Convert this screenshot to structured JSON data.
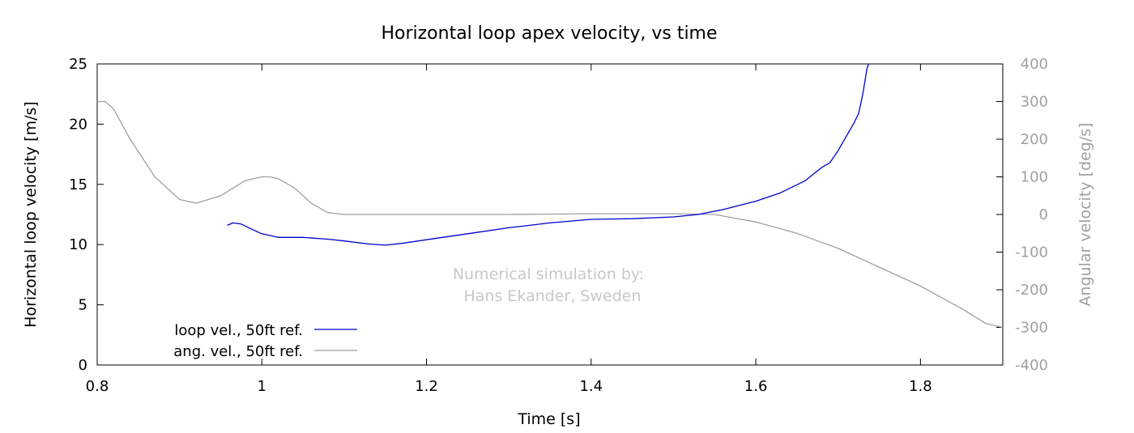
{
  "chart_data": {
    "type": "line",
    "title": "Horizontal loop apex velocity, vs time",
    "xlabel": "Time [s]",
    "ylabel": "Horizontal loop velocity [m/s]",
    "y2label": "Angular velocity [deg/s]",
    "xlim": [
      0.8,
      1.9
    ],
    "ylim": [
      0,
      25
    ],
    "y2lim": [
      -400,
      400
    ],
    "xticks": [
      0.8,
      1,
      1.2,
      1.4,
      1.6,
      1.8
    ],
    "yticks": [
      0,
      5,
      10,
      15,
      20,
      25
    ],
    "y2ticks": [
      -400,
      -300,
      -200,
      -100,
      0,
      100,
      200,
      300,
      400
    ],
    "grid": false,
    "legend_position": "bottom-left",
    "annotation": [
      "Numerical simulation by:",
      "Hans Ekander, Sweden"
    ],
    "series": [
      {
        "name": "loop vel., 50ft ref.",
        "axis": "y",
        "color": "#0000cc",
        "x": [
          0.958,
          0.965,
          0.975,
          0.99,
          1.0,
          1.02,
          1.05,
          1.08,
          1.1,
          1.13,
          1.15,
          1.17,
          1.2,
          1.25,
          1.3,
          1.35,
          1.4,
          1.45,
          1.5,
          1.53,
          1.56,
          1.6,
          1.63,
          1.66,
          1.68,
          1.69,
          1.7,
          1.71,
          1.72,
          1.725,
          1.73,
          1.735,
          1.737
        ],
        "y": [
          11.6,
          11.8,
          11.7,
          11.2,
          10.9,
          10.6,
          10.6,
          10.45,
          10.3,
          10.05,
          9.95,
          10.1,
          10.4,
          10.9,
          11.4,
          11.8,
          12.1,
          12.15,
          12.3,
          12.5,
          12.9,
          13.6,
          14.3,
          15.3,
          16.4,
          16.8,
          17.8,
          19.0,
          20.2,
          20.9,
          22.5,
          24.6,
          25.0
        ]
      },
      {
        "name": "ang. vel., 50ft ref.",
        "axis": "y2",
        "color": "#a0a0a0",
        "x": [
          0.8,
          0.81,
          0.82,
          0.84,
          0.87,
          0.9,
          0.92,
          0.95,
          0.98,
          1.0,
          1.01,
          1.02,
          1.04,
          1.06,
          1.08,
          1.1,
          1.2,
          1.3,
          1.4,
          1.5,
          1.55,
          1.6,
          1.65,
          1.7,
          1.75,
          1.8,
          1.85,
          1.88,
          1.9
        ],
        "y": [
          300,
          300,
          280,
          200,
          100,
          40,
          30,
          50,
          90,
          100,
          100,
          95,
          70,
          30,
          5,
          0,
          0,
          0,
          2,
          2,
          0,
          -20,
          -50,
          -90,
          -140,
          -190,
          -250,
          -290,
          -300
        ]
      }
    ]
  }
}
